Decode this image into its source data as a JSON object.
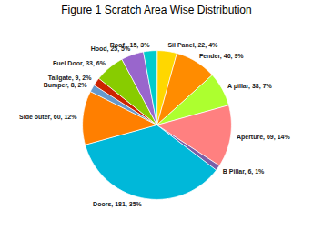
{
  "chart_data": {
    "type": "pie",
    "title": "Figure 1 Scratch Area Wise Distribution",
    "categories": [
      "Sil Panel, 22, 4%",
      "Fender, 46, 9%",
      "A pillar, 38, 7%",
      "Aperture, 69, 14%",
      "B Pillar, 6, 1%",
      "Doors, 181, 35%",
      "Side outer, 60, 12%",
      "Bumper, 8, 2%",
      "Tailgate, 9, 2%",
      "Fuel Door, 33, 6%",
      "Hood, 25, 5%",
      "Roof , 15, 3%"
    ],
    "values": [
      22,
      46,
      38,
      69,
      6,
      181,
      60,
      8,
      9,
      33,
      25,
      15
    ],
    "colors": [
      "#FFD700",
      "#FF8C00",
      "#ADFF2F",
      "#FF8080",
      "#7B5EA7",
      "#00B8D9",
      "#FF7F00",
      "#6699CC",
      "#CC2200",
      "#88CC00",
      "#9966CC",
      "#00CCCC"
    ]
  }
}
